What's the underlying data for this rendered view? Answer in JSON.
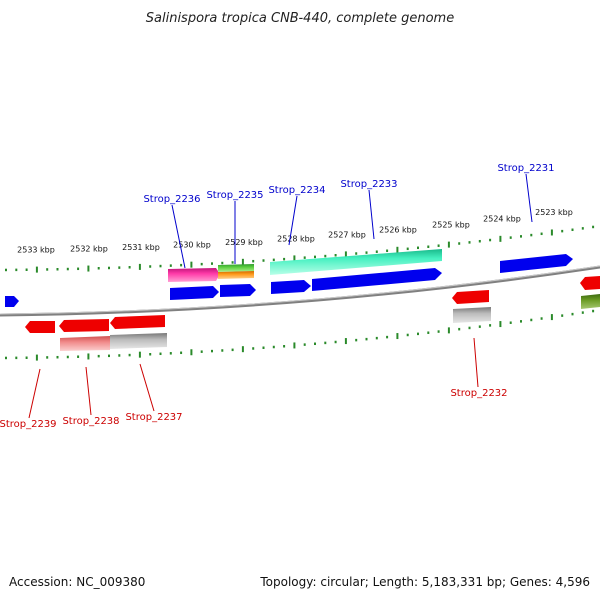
{
  "title": "Salinispora tropica CNB-440, complete genome",
  "footer": {
    "accession": "Accession: NC_009380",
    "topology": "Topology: circular; Length: 5,183,331 bp; Genes: 4,596"
  },
  "ticks": [
    "2533 kbp",
    "2532 kbp",
    "2531 kbp",
    "2530 kbp",
    "2529 kbp",
    "2528 kbp",
    "2527 kbp",
    "2526 kbp",
    "2525 kbp",
    "2524 kbp",
    "2523 kbp"
  ],
  "genes_top": [
    "Strop_2236",
    "Strop_2235",
    "Strop_2234",
    "Strop_2233",
    "Strop_2231"
  ],
  "genes_bottom": [
    "Strop_2239",
    "Strop_2238",
    "Strop_2237",
    "Strop_2232"
  ],
  "colors": {
    "forward": "#0000ee",
    "reverse": "#ee0000",
    "tick": "#2a8a2a",
    "backbone": "#808080",
    "top_label": "#0000cc",
    "bottom_label": "#cc0000"
  }
}
